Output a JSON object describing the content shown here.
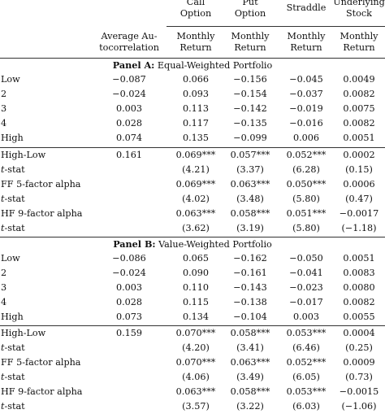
{
  "header": {
    "col1_top": "",
    "col1_bottom": [
      "Average Au-",
      "tocorrelation"
    ],
    "col2_top": [
      "Call",
      "Option"
    ],
    "col3_top": [
      "Put",
      "Option"
    ],
    "col4_top": [
      "Straddle"
    ],
    "col5_top": [
      "Underlying",
      "Stock"
    ],
    "sub": [
      "Monthly",
      "Return"
    ]
  },
  "panel_a": {
    "title_bold": "Panel A:",
    "title_rest": " Equal-Weighted Portfolio",
    "rows": [
      {
        "label": "Low",
        "v": [
          "−0.087",
          "0.066",
          "−0.156",
          "−0.045",
          "0.0049"
        ]
      },
      {
        "label": "2",
        "v": [
          "−0.024",
          "0.093",
          "−0.154",
          "−0.037",
          "0.0082"
        ]
      },
      {
        "label": "3",
        "v": [
          "0.003",
          "0.113",
          "−0.142",
          "−0.019",
          "0.0075"
        ]
      },
      {
        "label": "4",
        "v": [
          "0.028",
          "0.117",
          "−0.135",
          "−0.016",
          "0.0082"
        ]
      },
      {
        "label": "High",
        "v": [
          "0.074",
          "0.135",
          "−0.099",
          "0.006",
          "0.0051"
        ]
      }
    ],
    "stats": [
      {
        "label": "High-Low",
        "v": [
          "0.161",
          "0.069***",
          "0.057***",
          "0.052***",
          "0.0002"
        ]
      },
      {
        "label_it": "t",
        "label": "-stat",
        "v": [
          "",
          "(4.21)",
          "(3.37)",
          "(6.28)",
          "(0.15)"
        ]
      },
      {
        "label": "FF 5-factor alpha",
        "v": [
          "",
          "0.069***",
          "0.063***",
          "0.050***",
          "0.0006"
        ]
      },
      {
        "label_it": "t",
        "label": "-stat",
        "v": [
          "",
          "(4.02)",
          "(3.48)",
          "(5.80)",
          "(0.47)"
        ]
      },
      {
        "label": "HF 9-factor alpha",
        "v": [
          "",
          "0.063***",
          "0.058***",
          "0.051***",
          "−0.0017"
        ]
      },
      {
        "label_it": "t",
        "label": "-stat",
        "v": [
          "",
          "(3.62)",
          "(3.19)",
          "(5.80)",
          "(−1.18)"
        ]
      }
    ]
  },
  "panel_b": {
    "title_bold": "Panel B:",
    "title_rest": " Value-Weighted Portfolio",
    "rows": [
      {
        "label": "Low",
        "v": [
          "−0.086",
          "0.065",
          "−0.162",
          "−0.050",
          "0.0051"
        ]
      },
      {
        "label": "2",
        "v": [
          "−0.024",
          "0.090",
          "−0.161",
          "−0.041",
          "0.0083"
        ]
      },
      {
        "label": "3",
        "v": [
          "0.003",
          "0.110",
          "−0.143",
          "−0.023",
          "0.0080"
        ]
      },
      {
        "label": "4",
        "v": [
          "0.028",
          "0.115",
          "−0.138",
          "−0.017",
          "0.0082"
        ]
      },
      {
        "label": "High",
        "v": [
          "0.073",
          "0.134",
          "−0.104",
          "0.003",
          "0.0055"
        ]
      }
    ],
    "stats": [
      {
        "label": "High-Low",
        "v": [
          "0.159",
          "0.070***",
          "0.058***",
          "0.053***",
          "0.0004"
        ]
      },
      {
        "label_it": "t",
        "label": "-stat",
        "v": [
          "",
          "(4.20)",
          "(3.41)",
          "(6.46)",
          "(0.25)"
        ]
      },
      {
        "label": "FF 5-factor alpha",
        "v": [
          "",
          "0.070***",
          "0.063***",
          "0.052***",
          "0.0009"
        ]
      },
      {
        "label_it": "t",
        "label": "-stat",
        "v": [
          "",
          "(4.06)",
          "(3.49)",
          "(6.05)",
          "(0.73)"
        ]
      },
      {
        "label": "HF 9-factor alpha",
        "v": [
          "",
          "0.063***",
          "0.058***",
          "0.053***",
          "−0.0015"
        ]
      },
      {
        "label_it": "t",
        "label": "-stat",
        "v": [
          "",
          "(3.57)",
          "(3.22)",
          "(6.03)",
          "(−1.06)"
        ]
      }
    ]
  }
}
